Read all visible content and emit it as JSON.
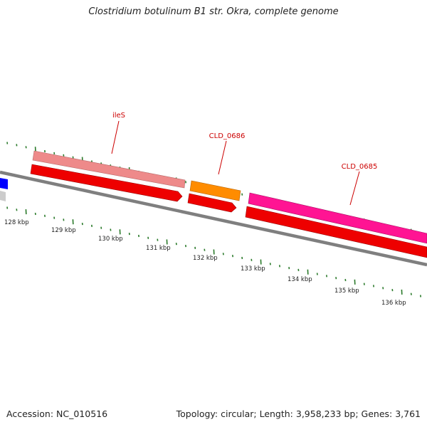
{
  "title": "Clostridium botulinum B1 str. Okra, complete genome",
  "footer": {
    "accession": "Accession: NC_010516",
    "summary": "Topology: circular; Length: 3,958,233 bp; Genes: 3,761"
  },
  "colors": {
    "backbone": "#7f7f7f",
    "cds": "#ee0000",
    "ileS": "#ee8a8a",
    "CLD_0686": "#ff8c00",
    "CLD_0685": "#ff1493",
    "left_feature": "#0000ff",
    "tick": "#2a7a2a",
    "label": "#cc0000"
  },
  "genes": [
    {
      "name": "ileS",
      "color_key": "ileS"
    },
    {
      "name": "CLD_0686",
      "color_key": "CLD_0686"
    },
    {
      "name": "CLD_0685",
      "color_key": "CLD_0685"
    }
  ],
  "kbp_labels": [
    "128 kbp",
    "129 kbp",
    "130 kbp",
    "131 kbp",
    "132 kbp",
    "133 kbp",
    "134 kbp",
    "135 kbp",
    "136 kbp"
  ]
}
